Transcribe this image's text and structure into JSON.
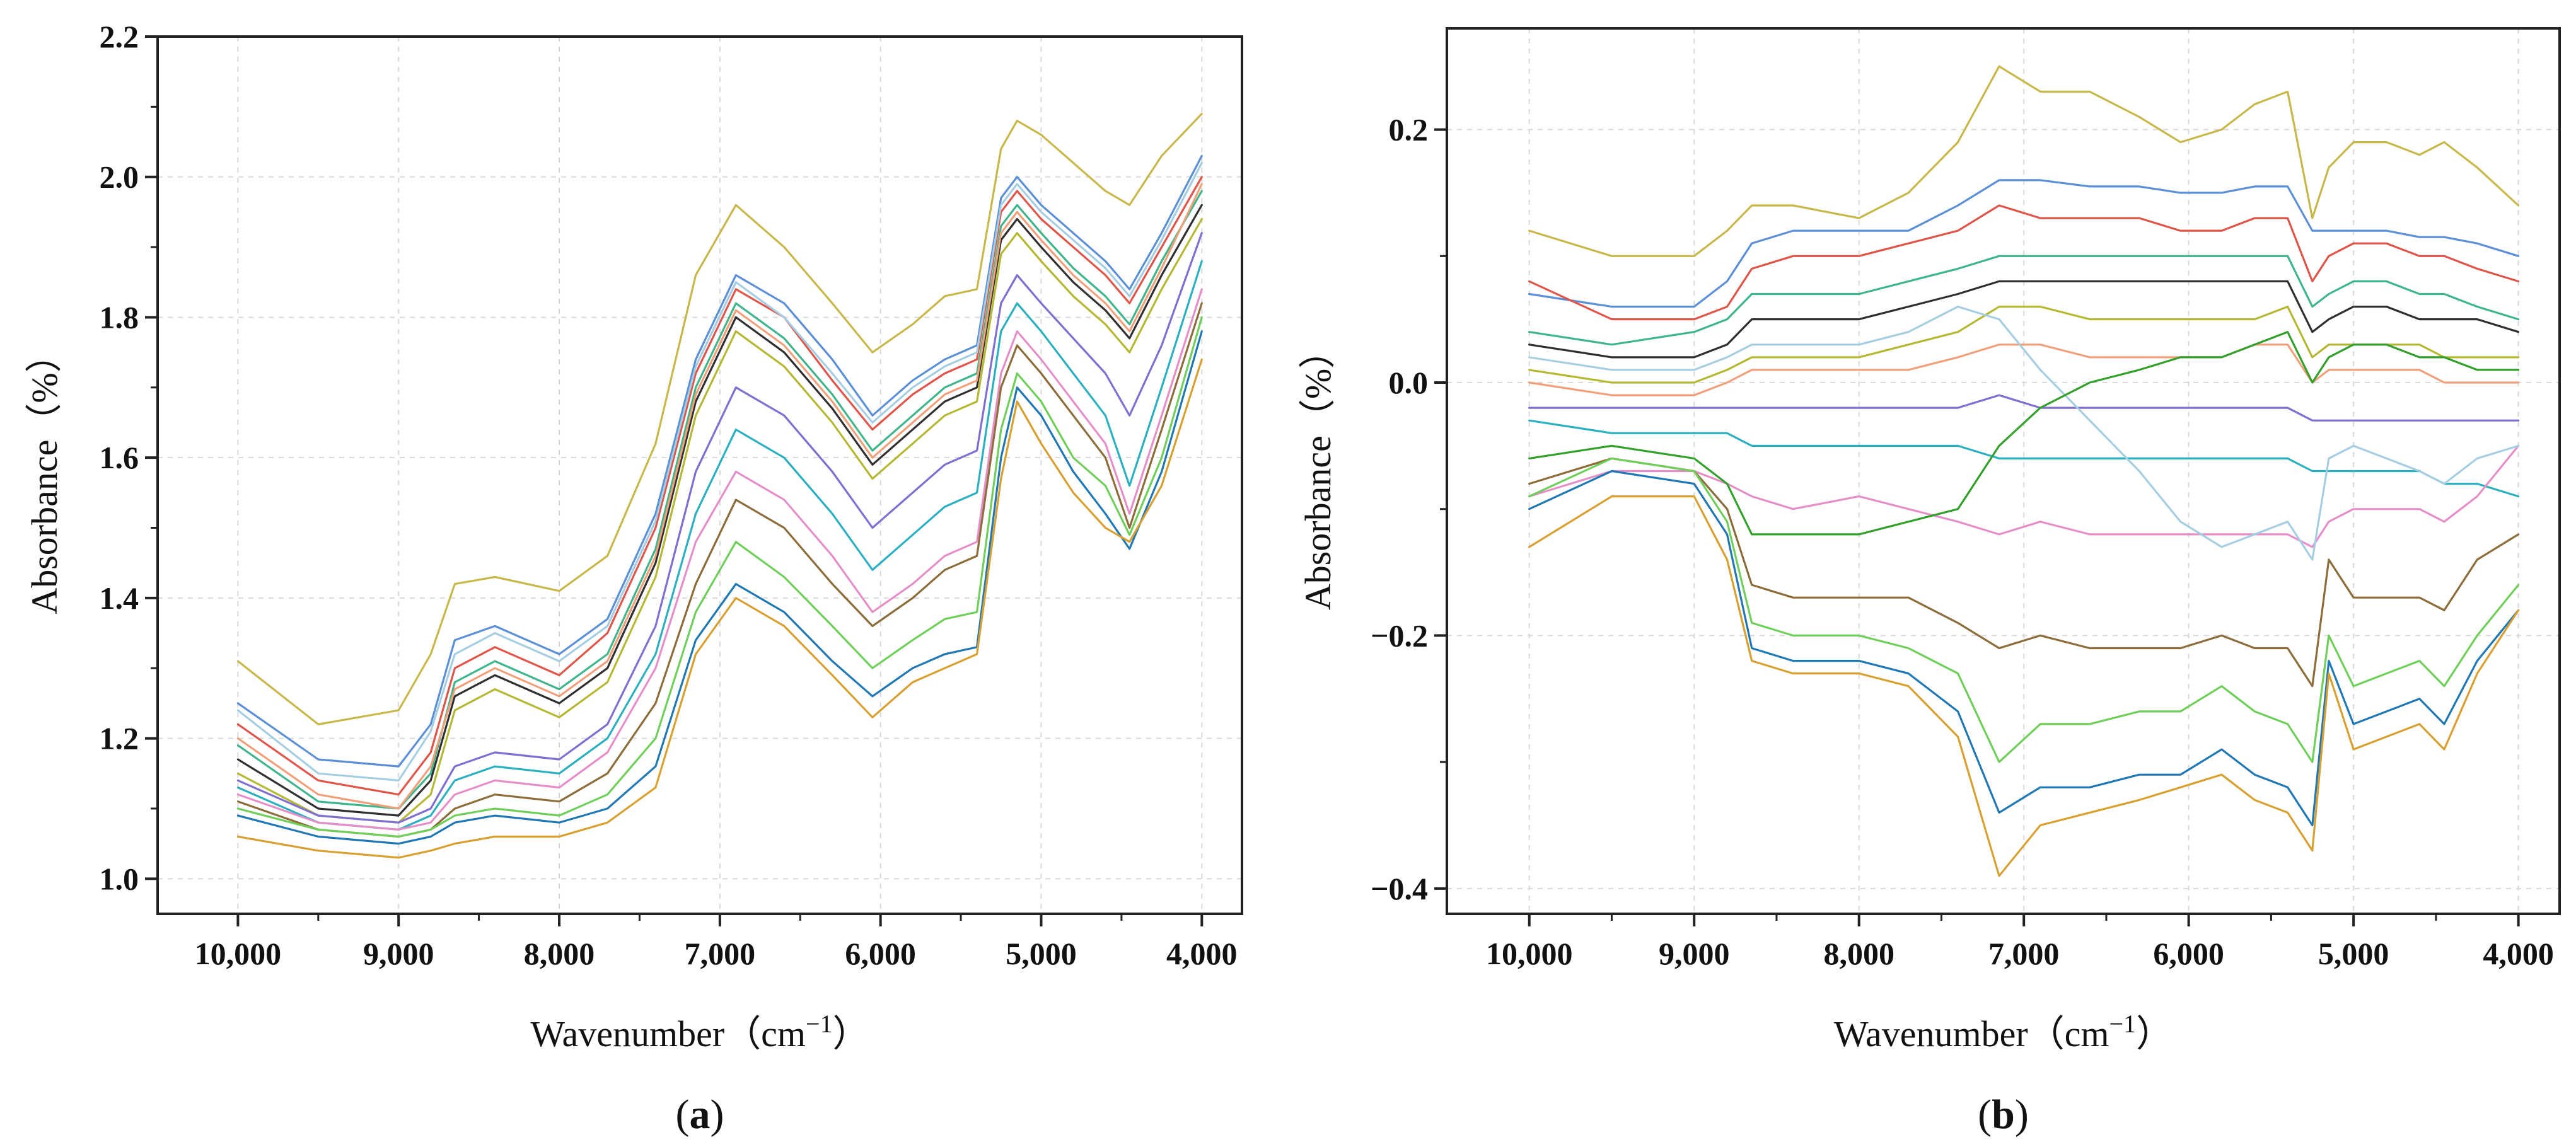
{
  "colors": [
    "#c8b84a",
    "#5b8fd6",
    "#e0554a",
    "#3fb58a",
    "#2f2f2f",
    "#b5b832",
    "#f0a07a",
    "#7f6fd0",
    "#2bb0c0",
    "#e58fc9",
    "#8c6d3a",
    "#6fcf5a",
    "#1f78b4",
    "#d8a030",
    "#a6cee3",
    "#33a02c",
    "#ff7f00",
    "#6a3d9a",
    "#b15928",
    "#00bcd4"
  ],
  "chart_data": [
    {
      "panel_label": "a",
      "type": "line",
      "xlabel": "Wavenumber",
      "xunit_base": "cm",
      "xunit_exp": "−1",
      "ylabel": "Absorbance（%）",
      "xlim": [
        10500,
        3750
      ],
      "ylim": [
        0.95,
        2.2
      ],
      "x_reversed": true,
      "grid": true,
      "xticks": [
        10000,
        9000,
        8000,
        7000,
        6000,
        5000,
        4000
      ],
      "xtick_labels": [
        "10,000",
        "9,000",
        "8,000",
        "7,000",
        "6,000",
        "5,000",
        "4,000"
      ],
      "yticks": [
        1.0,
        1.2,
        1.4,
        1.6,
        1.8,
        2.0,
        2.2
      ],
      "ytick_labels": [
        "1.0",
        "1.2",
        "1.4",
        "1.6",
        "1.8",
        "2.0",
        "2.2"
      ],
      "x": [
        10000,
        9500,
        9000,
        8800,
        8650,
        8400,
        8000,
        7700,
        7400,
        7150,
        6900,
        6600,
        6300,
        6050,
        5800,
        5600,
        5400,
        5250,
        5150,
        5000,
        4800,
        4600,
        4450,
        4250,
        4000
      ],
      "series": [
        {
          "values": [
            1.31,
            1.22,
            1.24,
            1.32,
            1.42,
            1.43,
            1.41,
            1.46,
            1.62,
            1.86,
            1.96,
            1.9,
            1.82,
            1.75,
            1.79,
            1.83,
            1.84,
            2.04,
            2.08,
            2.06,
            2.02,
            1.98,
            1.96,
            2.03,
            2.09
          ]
        },
        {
          "values": [
            1.25,
            1.17,
            1.16,
            1.22,
            1.34,
            1.36,
            1.32,
            1.37,
            1.52,
            1.74,
            1.86,
            1.82,
            1.74,
            1.66,
            1.71,
            1.74,
            1.76,
            1.97,
            2.0,
            1.96,
            1.92,
            1.88,
            1.84,
            1.92,
            2.03
          ]
        },
        {
          "values": [
            1.22,
            1.14,
            1.12,
            1.18,
            1.3,
            1.33,
            1.29,
            1.35,
            1.5,
            1.72,
            1.84,
            1.8,
            1.71,
            1.64,
            1.69,
            1.72,
            1.74,
            1.95,
            1.98,
            1.94,
            1.9,
            1.86,
            1.82,
            1.9,
            2.0
          ]
        },
        {
          "values": [
            1.19,
            1.11,
            1.1,
            1.15,
            1.28,
            1.31,
            1.27,
            1.32,
            1.47,
            1.7,
            1.82,
            1.77,
            1.69,
            1.61,
            1.66,
            1.7,
            1.72,
            1.93,
            1.96,
            1.92,
            1.87,
            1.83,
            1.79,
            1.88,
            1.98
          ]
        },
        {
          "values": [
            1.17,
            1.1,
            1.09,
            1.14,
            1.26,
            1.29,
            1.25,
            1.3,
            1.45,
            1.68,
            1.8,
            1.75,
            1.67,
            1.59,
            1.64,
            1.68,
            1.7,
            1.91,
            1.94,
            1.9,
            1.85,
            1.81,
            1.77,
            1.86,
            1.96
          ]
        },
        {
          "values": [
            1.15,
            1.09,
            1.08,
            1.12,
            1.24,
            1.27,
            1.23,
            1.28,
            1.43,
            1.66,
            1.78,
            1.73,
            1.65,
            1.57,
            1.62,
            1.66,
            1.68,
            1.89,
            1.92,
            1.88,
            1.83,
            1.79,
            1.75,
            1.84,
            1.94
          ]
        },
        {
          "values": [
            1.2,
            1.12,
            1.1,
            1.16,
            1.27,
            1.3,
            1.26,
            1.31,
            1.46,
            1.69,
            1.81,
            1.76,
            1.68,
            1.6,
            1.65,
            1.69,
            1.71,
            1.92,
            1.95,
            1.91,
            1.86,
            1.82,
            1.78,
            1.87,
            1.99
          ]
        },
        {
          "values": [
            1.14,
            1.09,
            1.08,
            1.1,
            1.16,
            1.18,
            1.17,
            1.22,
            1.36,
            1.58,
            1.7,
            1.66,
            1.58,
            1.5,
            1.55,
            1.59,
            1.61,
            1.82,
            1.86,
            1.82,
            1.77,
            1.72,
            1.66,
            1.76,
            1.92
          ]
        },
        {
          "values": [
            1.13,
            1.08,
            1.07,
            1.09,
            1.14,
            1.16,
            1.15,
            1.2,
            1.32,
            1.52,
            1.64,
            1.6,
            1.52,
            1.44,
            1.49,
            1.53,
            1.55,
            1.78,
            1.82,
            1.78,
            1.72,
            1.66,
            1.56,
            1.7,
            1.88
          ]
        },
        {
          "values": [
            1.12,
            1.08,
            1.07,
            1.08,
            1.12,
            1.14,
            1.13,
            1.18,
            1.3,
            1.48,
            1.58,
            1.54,
            1.46,
            1.38,
            1.42,
            1.46,
            1.48,
            1.72,
            1.78,
            1.74,
            1.68,
            1.62,
            1.52,
            1.66,
            1.84
          ]
        },
        {
          "values": [
            1.11,
            1.07,
            1.06,
            1.07,
            1.1,
            1.12,
            1.11,
            1.15,
            1.25,
            1.42,
            1.54,
            1.5,
            1.42,
            1.36,
            1.4,
            1.44,
            1.46,
            1.7,
            1.76,
            1.72,
            1.66,
            1.6,
            1.5,
            1.64,
            1.82
          ]
        },
        {
          "values": [
            1.1,
            1.07,
            1.06,
            1.07,
            1.09,
            1.1,
            1.09,
            1.12,
            1.2,
            1.38,
            1.48,
            1.43,
            1.36,
            1.3,
            1.34,
            1.37,
            1.38,
            1.64,
            1.72,
            1.68,
            1.6,
            1.56,
            1.49,
            1.6,
            1.8
          ]
        },
        {
          "values": [
            1.09,
            1.06,
            1.05,
            1.06,
            1.08,
            1.09,
            1.08,
            1.1,
            1.16,
            1.34,
            1.42,
            1.38,
            1.31,
            1.26,
            1.3,
            1.32,
            1.33,
            1.6,
            1.7,
            1.66,
            1.58,
            1.52,
            1.47,
            1.58,
            1.78
          ]
        },
        {
          "values": [
            1.06,
            1.04,
            1.03,
            1.04,
            1.05,
            1.06,
            1.06,
            1.08,
            1.13,
            1.32,
            1.4,
            1.36,
            1.29,
            1.23,
            1.28,
            1.3,
            1.32,
            1.57,
            1.68,
            1.62,
            1.55,
            1.5,
            1.48,
            1.56,
            1.74
          ]
        },
        {
          "values": [
            1.24,
            1.15,
            1.14,
            1.21,
            1.32,
            1.35,
            1.31,
            1.36,
            1.51,
            1.73,
            1.85,
            1.8,
            1.72,
            1.65,
            1.7,
            1.73,
            1.75,
            1.96,
            1.99,
            1.95,
            1.91,
            1.87,
            1.83,
            1.91,
            2.02
          ]
        }
      ]
    },
    {
      "panel_label": "b",
      "type": "line",
      "xlabel": "Wavenumber",
      "xunit_base": "cm",
      "xunit_exp": "−1",
      "ylabel": "Absorbance（%）",
      "xlim": [
        10500,
        3750
      ],
      "ylim": [
        -0.42,
        0.28
      ],
      "x_reversed": true,
      "grid": true,
      "xticks": [
        10000,
        9000,
        8000,
        7000,
        6000,
        5000,
        4000
      ],
      "xtick_labels": [
        "10,000",
        "9,000",
        "8,000",
        "7,000",
        "6,000",
        "5,000",
        "4,000"
      ],
      "yticks": [
        -0.4,
        -0.2,
        0.0,
        0.2
      ],
      "ytick_labels": [
        "−0.4",
        "−0.2",
        "0.0",
        "0.2"
      ],
      "x": [
        10000,
        9500,
        9000,
        8800,
        8650,
        8400,
        8000,
        7700,
        7400,
        7150,
        6900,
        6600,
        6300,
        6050,
        5800,
        5600,
        5400,
        5250,
        5150,
        5000,
        4800,
        4600,
        4450,
        4250,
        4000
      ],
      "series": [
        {
          "values": [
            0.12,
            0.1,
            0.1,
            0.12,
            0.14,
            0.14,
            0.13,
            0.15,
            0.19,
            0.25,
            0.23,
            0.23,
            0.21,
            0.19,
            0.2,
            0.22,
            0.23,
            0.13,
            0.17,
            0.19,
            0.19,
            0.18,
            0.19,
            0.17,
            0.14
          ]
        },
        {
          "values": [
            0.07,
            0.06,
            0.06,
            0.08,
            0.11,
            0.12,
            0.12,
            0.12,
            0.14,
            0.16,
            0.16,
            0.155,
            0.155,
            0.15,
            0.15,
            0.155,
            0.155,
            0.12,
            0.12,
            0.12,
            0.12,
            0.115,
            0.115,
            0.11,
            0.1
          ]
        },
        {
          "values": [
            0.08,
            0.05,
            0.05,
            0.06,
            0.09,
            0.1,
            0.1,
            0.11,
            0.12,
            0.14,
            0.13,
            0.13,
            0.13,
            0.12,
            0.12,
            0.13,
            0.13,
            0.08,
            0.1,
            0.11,
            0.11,
            0.1,
            0.1,
            0.09,
            0.08
          ]
        },
        {
          "values": [
            0.04,
            0.03,
            0.04,
            0.05,
            0.07,
            0.07,
            0.07,
            0.08,
            0.09,
            0.1,
            0.1,
            0.1,
            0.1,
            0.1,
            0.1,
            0.1,
            0.1,
            0.06,
            0.07,
            0.08,
            0.08,
            0.07,
            0.07,
            0.06,
            0.05
          ]
        },
        {
          "values": [
            0.03,
            0.02,
            0.02,
            0.03,
            0.05,
            0.05,
            0.05,
            0.06,
            0.07,
            0.08,
            0.08,
            0.08,
            0.08,
            0.08,
            0.08,
            0.08,
            0.08,
            0.04,
            0.05,
            0.06,
            0.06,
            0.05,
            0.05,
            0.05,
            0.04
          ]
        },
        {
          "values": [
            0.01,
            0.0,
            0.0,
            0.01,
            0.02,
            0.02,
            0.02,
            0.03,
            0.04,
            0.06,
            0.06,
            0.05,
            0.05,
            0.05,
            0.05,
            0.05,
            0.06,
            0.02,
            0.03,
            0.03,
            0.03,
            0.03,
            0.02,
            0.02,
            0.02
          ]
        },
        {
          "values": [
            0.0,
            -0.01,
            -0.01,
            0.0,
            0.01,
            0.01,
            0.01,
            0.01,
            0.02,
            0.03,
            0.03,
            0.02,
            0.02,
            0.02,
            0.02,
            0.03,
            0.03,
            0.0,
            0.01,
            0.01,
            0.01,
            0.01,
            0.0,
            0.0,
            0.0
          ]
        },
        {
          "values": [
            -0.02,
            -0.02,
            -0.02,
            -0.02,
            -0.02,
            -0.02,
            -0.02,
            -0.02,
            -0.02,
            -0.01,
            -0.02,
            -0.02,
            -0.02,
            -0.02,
            -0.02,
            -0.02,
            -0.02,
            -0.03,
            -0.03,
            -0.03,
            -0.03,
            -0.03,
            -0.03,
            -0.03,
            -0.03
          ]
        },
        {
          "values": [
            -0.03,
            -0.04,
            -0.04,
            -0.04,
            -0.05,
            -0.05,
            -0.05,
            -0.05,
            -0.05,
            -0.06,
            -0.06,
            -0.06,
            -0.06,
            -0.06,
            -0.06,
            -0.06,
            -0.06,
            -0.07,
            -0.07,
            -0.07,
            -0.07,
            -0.07,
            -0.08,
            -0.08,
            -0.09
          ]
        },
        {
          "values": [
            -0.09,
            -0.07,
            -0.07,
            -0.08,
            -0.09,
            -0.1,
            -0.09,
            -0.1,
            -0.11,
            -0.12,
            -0.11,
            -0.12,
            -0.12,
            -0.12,
            -0.12,
            -0.12,
            -0.12,
            -0.13,
            -0.11,
            -0.1,
            -0.1,
            -0.1,
            -0.11,
            -0.09,
            -0.05
          ]
        },
        {
          "values": [
            -0.08,
            -0.06,
            -0.07,
            -0.1,
            -0.16,
            -0.17,
            -0.17,
            -0.17,
            -0.19,
            -0.21,
            -0.2,
            -0.21,
            -0.21,
            -0.21,
            -0.2,
            -0.21,
            -0.21,
            -0.24,
            -0.14,
            -0.17,
            -0.17,
            -0.17,
            -0.18,
            -0.14,
            -0.12
          ]
        },
        {
          "values": [
            -0.09,
            -0.06,
            -0.07,
            -0.11,
            -0.19,
            -0.2,
            -0.2,
            -0.21,
            -0.23,
            -0.3,
            -0.27,
            -0.27,
            -0.26,
            -0.26,
            -0.24,
            -0.26,
            -0.27,
            -0.3,
            -0.2,
            -0.24,
            -0.23,
            -0.22,
            -0.24,
            -0.2,
            -0.16
          ]
        },
        {
          "values": [
            -0.1,
            -0.07,
            -0.08,
            -0.12,
            -0.21,
            -0.22,
            -0.22,
            -0.23,
            -0.26,
            -0.34,
            -0.32,
            -0.32,
            -0.31,
            -0.31,
            -0.29,
            -0.31,
            -0.32,
            -0.35,
            -0.22,
            -0.27,
            -0.26,
            -0.25,
            -0.27,
            -0.22,
            -0.18
          ]
        },
        {
          "values": [
            -0.13,
            -0.09,
            -0.09,
            -0.14,
            -0.22,
            -0.23,
            -0.23,
            -0.24,
            -0.28,
            -0.39,
            -0.35,
            -0.34,
            -0.33,
            -0.32,
            -0.31,
            -0.33,
            -0.34,
            -0.37,
            -0.23,
            -0.29,
            -0.28,
            -0.27,
            -0.29,
            -0.23,
            -0.18
          ]
        },
        {
          "values": [
            0.02,
            0.01,
            0.01,
            0.02,
            0.03,
            0.03,
            0.03,
            0.04,
            0.06,
            0.05,
            0.01,
            -0.03,
            -0.07,
            -0.11,
            -0.13,
            -0.12,
            -0.11,
            -0.14,
            -0.06,
            -0.05,
            -0.06,
            -0.07,
            -0.08,
            -0.06,
            -0.05
          ]
        },
        {
          "values": [
            -0.06,
            -0.05,
            -0.06,
            -0.08,
            -0.12,
            -0.12,
            -0.12,
            -0.11,
            -0.1,
            -0.05,
            -0.02,
            0.0,
            0.01,
            0.02,
            0.02,
            0.03,
            0.04,
            0.0,
            0.02,
            0.03,
            0.03,
            0.02,
            0.02,
            0.01,
            0.01
          ]
        }
      ]
    }
  ]
}
